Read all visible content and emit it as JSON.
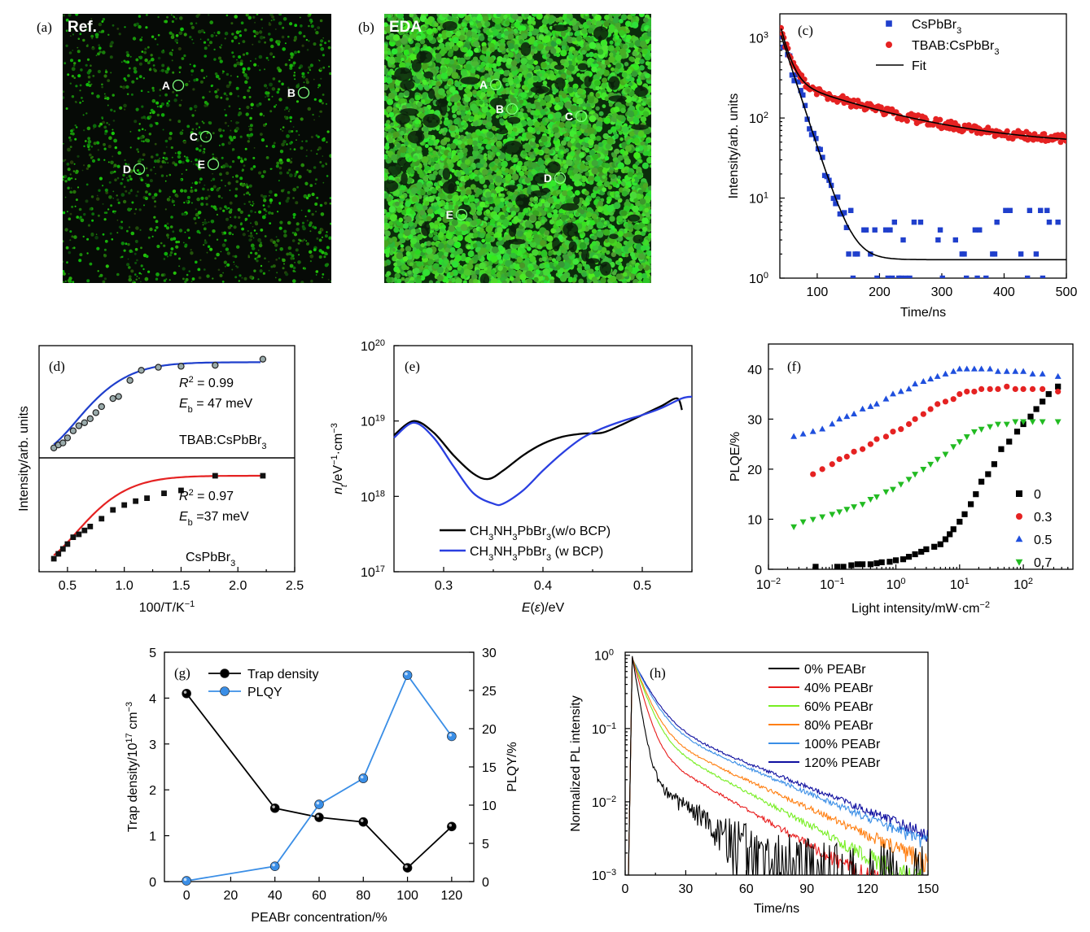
{
  "colors": {
    "green_image": "#2ecc2e",
    "black": "#000000",
    "blue": "#1f3fcc",
    "red": "#e52222",
    "light_blue": "#3a8ee6",
    "green": "#22bb22",
    "orange": "#ff7f11",
    "lime": "#77ee22",
    "navy": "#1010a0"
  },
  "chart_data": [
    {
      "panel": "(a)",
      "type": "image",
      "title": "Ref.",
      "markers": [
        "A",
        "B",
        "C",
        "D",
        "E"
      ]
    },
    {
      "panel": "(b)",
      "type": "image",
      "title": "EDA",
      "markers": [
        "A",
        "B",
        "C",
        "D",
        "E"
      ]
    },
    {
      "panel": "(c)",
      "type": "scatter",
      "xlabel": "Time/ns",
      "ylabel": "Intensity/arb. units",
      "xlim": [
        40,
        500
      ],
      "ylim": [
        1,
        2000
      ],
      "yscale": "log",
      "xticks": [
        "100",
        "200",
        "300",
        "400",
        "500"
      ],
      "yticks": [
        "10",
        "10",
        "10",
        "10"
      ],
      "ytick_exp": [
        "0",
        "1",
        "2",
        "3"
      ],
      "legend": [
        "CsPbBr3",
        "TBAB:CsPbBr3",
        "Fit"
      ],
      "legend_sub": [
        "3",
        "3",
        ""
      ],
      "legend_main": [
        "CsPbBr",
        "TBAB:CsPbBr",
        "Fit"
      ],
      "series": [
        {
          "name": "CsPbBr3",
          "marker": "square",
          "color": "#1f3fcc",
          "tau": 18,
          "amp": 1200,
          "offset": 1.7,
          "scatter": "noisy"
        },
        {
          "name": "TBAB:CsPbBr3",
          "marker": "circle",
          "color": "#e52222",
          "amp_fast": 1200,
          "tau_fast": 12,
          "amp_slow": 250,
          "tau_slow": 140,
          "offset": 45
        },
        {
          "name": "Fit",
          "marker": "line",
          "color": "#000000"
        }
      ]
    },
    {
      "panel": "(d)",
      "type": "scatter",
      "xlabel": "100/T/K",
      "xlabel_exp": "−1",
      "ylabel": "Intensity/arb. units",
      "xlim": [
        0.25,
        2.5
      ],
      "xticks": [
        "0.5",
        "1.0",
        "1.5",
        "2.0",
        "2.5"
      ],
      "subplots": [
        {
          "name": "TBAB:CsPbBr3",
          "label_main": "TBAB:CsPbBr",
          "label_sub": "3",
          "r2": "= 0.99",
          "eb": "= 47 meV",
          "marker": "circle",
          "color": "#1f3fcc",
          "x": [
            0.38,
            0.42,
            0.46,
            0.5,
            0.55,
            0.6,
            0.65,
            0.7,
            0.75,
            0.8,
            0.9,
            0.95,
            1.05,
            1.15,
            1.3,
            1.5,
            1.8,
            2.22
          ],
          "y": [
            0.05,
            0.08,
            0.1,
            0.15,
            0.22,
            0.27,
            0.3,
            0.34,
            0.4,
            0.46,
            0.54,
            0.56,
            0.72,
            0.82,
            0.85,
            0.86,
            0.87,
            0.93
          ]
        },
        {
          "name": "CsPbBr3",
          "label_main": "CsPbBr",
          "label_sub": "3",
          "r2": "= 0.97",
          "eb": "=37 meV",
          "marker": "square",
          "color": "#e52222",
          "x": [
            0.38,
            0.42,
            0.46,
            0.5,
            0.55,
            0.6,
            0.65,
            0.7,
            0.8,
            0.9,
            1.0,
            1.1,
            1.2,
            1.35,
            1.5,
            1.8,
            2.22
          ],
          "y": [
            0.05,
            0.1,
            0.15,
            0.2,
            0.27,
            0.3,
            0.34,
            0.38,
            0.46,
            0.55,
            0.6,
            0.64,
            0.67,
            0.72,
            0.75,
            0.9,
            0.9
          ]
        }
      ]
    },
    {
      "panel": "(e)",
      "type": "line",
      "xlabel": "E(ε)/eV",
      "ylabel": "n",
      "ylabel_rest": "/eV",
      "ylabel_exp": "−1",
      "ylabel_tail": "·cm",
      "ylabel_exp2": "−3",
      "xlim": [
        0.25,
        0.55
      ],
      "ylim": [
        1e+17,
        1e+20
      ],
      "yscale": "log",
      "xticks": [
        "0.3",
        "0.4",
        "0.5"
      ],
      "ytick_exp": [
        "17",
        "18",
        "19",
        "20"
      ],
      "series": [
        {
          "name": "CH3NH3PbBr3(w/o BCP)",
          "label_a": "CH",
          "label_b": "NH",
          "label_c": "PbBr",
          "label_d": "(w/o BCP)",
          "color": "#000000",
          "x": [
            0.25,
            0.27,
            0.29,
            0.31,
            0.33,
            0.345,
            0.36,
            0.38,
            0.4,
            0.42,
            0.44,
            0.46,
            0.48,
            0.5,
            0.52,
            0.535,
            0.54
          ],
          "y": [
            6.5e+18,
            1e+19,
            7e+18,
            3.5e+18,
            2e+18,
            1.7e+18,
            2.2e+18,
            3.5e+18,
            5e+18,
            6.2e+18,
            6.8e+18,
            7e+18,
            9e+18,
            1.2e+19,
            1.6e+19,
            2e+19,
            1.4e+19
          ]
        },
        {
          "name": "CH3NH3PbBr3 (w BCP)",
          "label_a": "CH",
          "label_b": "NH",
          "label_c": "PbBr",
          "label_d": " (w BCP)",
          "color": "#2a3fe0",
          "x": [
            0.25,
            0.27,
            0.29,
            0.31,
            0.33,
            0.35,
            0.36,
            0.38,
            0.4,
            0.42,
            0.44,
            0.46,
            0.48,
            0.5,
            0.52,
            0.54,
            0.55
          ],
          "y": [
            6e+18,
            9.5e+18,
            6e+18,
            2.5e+18,
            1.1e+18,
            8e+17,
            8e+17,
            1.2e+18,
            2.2e+18,
            3.8e+18,
            6e+18,
            8e+18,
            1e+19,
            1.2e+19,
            1.5e+19,
            2e+19,
            2.1e+19
          ]
        }
      ]
    },
    {
      "panel": "(f)",
      "type": "scatter",
      "xlabel": "Light intensity/mW·cm",
      "xlabel_exp": "−2",
      "ylabel": "PLQE/%",
      "xlim": [
        0.01,
        600
      ],
      "xscale": "log",
      "ylim": [
        0,
        45
      ],
      "yticks": [
        "0",
        "10",
        "20",
        "30",
        "40"
      ],
      "xtick_exp": [
        "−2",
        "−1",
        "0",
        "1",
        "2"
      ],
      "series": [
        {
          "name": "0",
          "marker": "square",
          "color": "#000000",
          "x": [
            0.055,
            0.12,
            0.15,
            0.2,
            0.25,
            0.3,
            0.4,
            0.5,
            0.6,
            0.8,
            1,
            1.3,
            1.6,
            2,
            2.5,
            3,
            4,
            5,
            6,
            7,
            8,
            10,
            12,
            15,
            18,
            22,
            28,
            35,
            45,
            60,
            80,
            100,
            130,
            160,
            200,
            250,
            350
          ],
          "y": [
            0.5,
            0.5,
            0.5,
            0.8,
            1,
            1,
            1,
            1.2,
            1.4,
            1.5,
            1.8,
            2,
            2.5,
            3,
            3.5,
            4,
            4.5,
            5,
            6,
            7,
            8,
            9.5,
            11,
            13,
            15,
            17.5,
            19,
            21,
            24,
            25.5,
            27.5,
            29,
            30.5,
            32,
            33.5,
            35,
            36.5
          ]
        },
        {
          "name": "0.3",
          "marker": "circle",
          "color": "#e52222",
          "x": [
            0.05,
            0.07,
            0.1,
            0.13,
            0.17,
            0.22,
            0.3,
            0.4,
            0.5,
            0.7,
            0.9,
            1.2,
            1.6,
            2,
            2.7,
            3.5,
            4.5,
            6,
            8,
            10,
            13,
            17,
            22,
            30,
            40,
            55,
            75,
            100,
            140,
            200,
            350
          ],
          "y": [
            19,
            20,
            21,
            22,
            22.5,
            23.5,
            24,
            25,
            26,
            26.5,
            27.5,
            28,
            29,
            30,
            31,
            32,
            33,
            33.5,
            34,
            35,
            35.5,
            35.5,
            36,
            36,
            36,
            36.5,
            36,
            36,
            36,
            36,
            35.5
          ]
        },
        {
          "name": "0.5",
          "marker": "triangle-up",
          "color": "#1f4fdd",
          "x": [
            0.025,
            0.035,
            0.05,
            0.07,
            0.1,
            0.13,
            0.17,
            0.22,
            0.3,
            0.4,
            0.5,
            0.7,
            0.9,
            1.2,
            1.6,
            2,
            2.7,
            3.5,
            4.5,
            6,
            8,
            10,
            13,
            17,
            22,
            30,
            40,
            55,
            75,
            100,
            140,
            200,
            350
          ],
          "y": [
            26.5,
            27,
            27.5,
            28,
            29,
            30,
            30.5,
            31,
            32,
            32.5,
            33,
            34,
            35,
            35.5,
            36,
            37,
            37.5,
            38,
            38.5,
            39,
            39.5,
            40,
            40,
            40,
            40,
            40,
            39.5,
            39.5,
            39.5,
            39.5,
            39,
            39,
            38.5
          ]
        },
        {
          "name": "0.7",
          "marker": "triangle-down",
          "color": "#22bb22",
          "x": [
            0.025,
            0.035,
            0.05,
            0.07,
            0.1,
            0.13,
            0.17,
            0.22,
            0.3,
            0.4,
            0.5,
            0.7,
            0.9,
            1.2,
            1.6,
            2,
            2.7,
            3.5,
            4.5,
            6,
            8,
            10,
            13,
            17,
            22,
            30,
            40,
            55,
            75,
            100,
            140,
            200,
            350
          ],
          "y": [
            8.5,
            9.5,
            10,
            10.5,
            11,
            11.5,
            12,
            12.5,
            13,
            14,
            14.5,
            15.5,
            16,
            17,
            18,
            19,
            20,
            21,
            22,
            23,
            24.5,
            25.5,
            26.5,
            27.5,
            28,
            28.5,
            29,
            29,
            29.5,
            29.5,
            29.5,
            29.5,
            29.5
          ]
        }
      ]
    },
    {
      "panel": "(g)",
      "type": "line",
      "xlabel": "PEABr concentration/%",
      "ylabel": "Trap density/10",
      "ylabel_exp": "17",
      "ylabel_tail": " cm",
      "ylabel_exp2": "−3",
      "ylabel_right": "PLQY/%",
      "xlim": [
        -10,
        130
      ],
      "ylim": [
        0,
        5
      ],
      "ylim_right": [
        0,
        30
      ],
      "xticks": [
        "0",
        "20",
        "40",
        "60",
        "80",
        "100",
        "120"
      ],
      "yticks": [
        "0",
        "1",
        "2",
        "3",
        "4",
        "5"
      ],
      "yticks_right": [
        "0",
        "5",
        "10",
        "15",
        "20",
        "25",
        "30"
      ],
      "series": [
        {
          "name": "Trap density",
          "axis": "left",
          "color": "#000000",
          "x": [
            0,
            40,
            60,
            80,
            100,
            120
          ],
          "y": [
            4.1,
            1.6,
            1.4,
            1.3,
            0.3,
            1.2
          ]
        },
        {
          "name": "PLQY",
          "axis": "right",
          "color": "#3a8ee6",
          "x": [
            0,
            40,
            60,
            80,
            100,
            120
          ],
          "y": [
            0.1,
            2.0,
            10.1,
            13.5,
            27.0,
            19.0
          ]
        }
      ]
    },
    {
      "panel": "(h)",
      "type": "line",
      "xlabel": "Time/ns",
      "ylabel": "Normalized PL intensity",
      "xlim": [
        0,
        150
      ],
      "ylim": [
        0.001,
        1.1
      ],
      "yscale": "log",
      "xticks": [
        "0",
        "30",
        "60",
        "90",
        "120",
        "150"
      ],
      "ytick_exp": [
        "−3",
        "−2",
        "−1",
        "0"
      ],
      "series": [
        {
          "name": "0% PEABr",
          "color": "#000000",
          "tau1": 2.5,
          "a1": 0.95,
          "tau2": 25,
          "a2": 0.025
        },
        {
          "name": "40% PEABr",
          "color": "#e81c1c",
          "tau1": 4,
          "a1": 0.88,
          "tau2": 28,
          "a2": 0.06
        },
        {
          "name": "60% PEABr",
          "color": "#77ee22",
          "tau1": 5,
          "a1": 0.84,
          "tau2": 30,
          "a2": 0.09
        },
        {
          "name": "80% PEABr",
          "color": "#ff7f11",
          "tau1": 5.5,
          "a1": 0.82,
          "tau2": 35,
          "a2": 0.1
        },
        {
          "name": "100% PEABr",
          "color": "#3a8ee6",
          "tau1": 6.5,
          "a1": 0.78,
          "tau2": 38,
          "a2": 0.13
        },
        {
          "name": "120% PEABr",
          "color": "#1010a0",
          "tau1": 7,
          "a1": 0.76,
          "tau2": 40,
          "a2": 0.14
        }
      ]
    }
  ]
}
